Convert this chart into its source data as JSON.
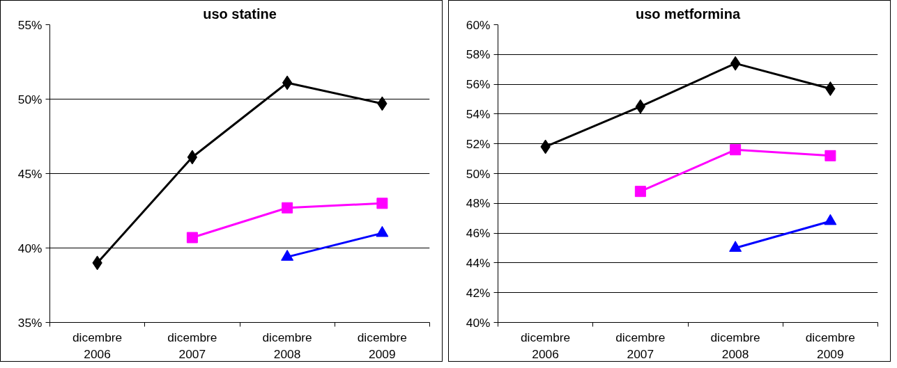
{
  "chart_data": [
    {
      "type": "line",
      "title": "uso statine",
      "categories": [
        "dicembre\n2006",
        "dicembre\n2007",
        "dicembre\n2008",
        "dicembre\n2009"
      ],
      "series": [
        {
          "color": "#000000",
          "marker": "diamond",
          "values": [
            39.0,
            46.1,
            51.1,
            49.7
          ]
        },
        {
          "color": "#ff00ff",
          "marker": "square",
          "values": [
            null,
            40.7,
            42.7,
            43.0
          ]
        },
        {
          "color": "#0000ff",
          "marker": "triangle",
          "values": [
            null,
            null,
            39.4,
            41.0
          ]
        }
      ],
      "ylim": [
        35,
        55
      ],
      "yticks": [
        {
          "value": 35,
          "label": "35%"
        },
        {
          "value": 40,
          "label": "40%"
        },
        {
          "value": 45,
          "label": "45%"
        },
        {
          "value": 50,
          "label": "50%"
        },
        {
          "value": 55,
          "label": "55%"
        }
      ],
      "grid": "y"
    },
    {
      "type": "line",
      "title": "uso metformina",
      "categories": [
        "dicembre\n2006",
        "dicembre\n2007",
        "dicembre\n2008",
        "dicembre\n2009"
      ],
      "series": [
        {
          "color": "#000000",
          "marker": "diamond",
          "values": [
            51.8,
            54.5,
            57.4,
            55.7
          ]
        },
        {
          "color": "#ff00ff",
          "marker": "square",
          "values": [
            null,
            48.8,
            51.6,
            51.2
          ]
        },
        {
          "color": "#0000ff",
          "marker": "triangle",
          "values": [
            null,
            null,
            45.0,
            46.8
          ]
        }
      ],
      "ylim": [
        40,
        60
      ],
      "yticks": [
        {
          "value": 40,
          "label": "40%"
        },
        {
          "value": 42,
          "label": "42%"
        },
        {
          "value": 44,
          "label": "44%"
        },
        {
          "value": 46,
          "label": "46%"
        },
        {
          "value": 48,
          "label": "48%"
        },
        {
          "value": 50,
          "label": "50%"
        },
        {
          "value": 52,
          "label": "52%"
        },
        {
          "value": 54,
          "label": "54%"
        },
        {
          "value": 56,
          "label": "56%"
        },
        {
          "value": 58,
          "label": "58%"
        },
        {
          "value": 60,
          "label": "60%"
        }
      ],
      "grid": "y"
    }
  ]
}
